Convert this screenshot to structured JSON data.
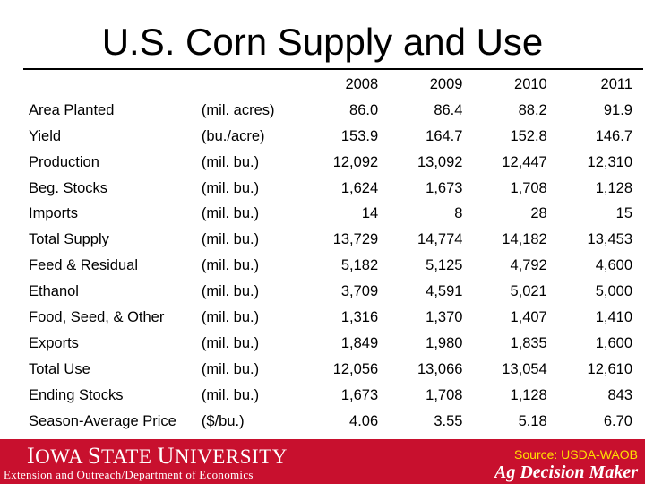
{
  "title": "U.S. Corn Supply and Use",
  "table": {
    "years": [
      "2008",
      "2009",
      "2010",
      "2011"
    ],
    "rows": [
      {
        "item": "Area Planted",
        "unit": "(mil. acres)",
        "values": [
          "86.0",
          "86.4",
          "88.2",
          "91.9"
        ]
      },
      {
        "item": "Yield",
        "unit": "(bu./acre)",
        "values": [
          "153.9",
          "164.7",
          "152.8",
          "146.7"
        ]
      },
      {
        "item": "Production",
        "unit": "(mil. bu.)",
        "values": [
          "12,092",
          "13,092",
          "12,447",
          "12,310"
        ]
      },
      {
        "item": "Beg. Stocks",
        "unit": "(mil. bu.)",
        "values": [
          "1,624",
          "1,673",
          "1,708",
          "1,128"
        ]
      },
      {
        "item": "Imports",
        "unit": "(mil. bu.)",
        "values": [
          "14",
          "8",
          "28",
          "15"
        ]
      },
      {
        "item": "Total Supply",
        "unit": "(mil. bu.)",
        "values": [
          "13,729",
          "14,774",
          "14,182",
          "13,453"
        ]
      },
      {
        "item": "Feed & Residual",
        "unit": "(mil. bu.)",
        "values": [
          "5,182",
          "5,125",
          "4,792",
          "4,600"
        ]
      },
      {
        "item": "Ethanol",
        "unit": "(mil. bu.)",
        "values": [
          "3,709",
          "4,591",
          "5,021",
          "5,000"
        ]
      },
      {
        "item": "Food, Seed, & Other",
        "unit": "(mil. bu.)",
        "values": [
          "1,316",
          "1,370",
          "1,407",
          "1,410"
        ]
      },
      {
        "item": "Exports",
        "unit": "(mil. bu.)",
        "values": [
          "1,849",
          "1,980",
          "1,835",
          "1,600"
        ]
      },
      {
        "item": "Total Use",
        "unit": "(mil. bu.)",
        "values": [
          "12,056",
          "13,066",
          "13,054",
          "12,610"
        ]
      },
      {
        "item": "Ending Stocks",
        "unit": "(mil. bu.)",
        "values": [
          "1,673",
          "1,708",
          "1,128",
          "843"
        ]
      },
      {
        "item": "Season-Average Price",
        "unit": "($/bu.)",
        "values": [
          "4.06",
          "3.55",
          "5.18",
          "6.70"
        ]
      }
    ]
  },
  "footer": {
    "logo_text_first": "I",
    "logo_text_rest": "OWA ",
    "logo_text_s": "S",
    "logo_text_tate": "TATE ",
    "logo_text_u": "U",
    "logo_text_niversity": "NIVERSITY",
    "department": "Extension and Outreach/Department of Economics",
    "source": "Source: USDA-WAOB",
    "brand": "Ag Decision Maker"
  },
  "colors": {
    "footer_bg": "#c8102e",
    "source_text": "#ffe100"
  }
}
